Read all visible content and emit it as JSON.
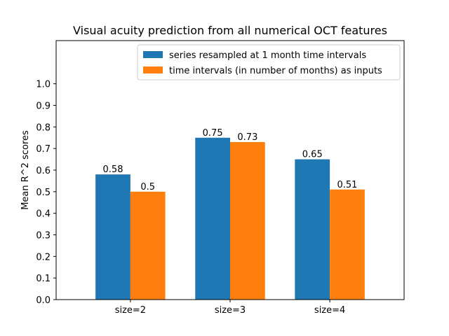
{
  "chart_data": {
    "type": "bar",
    "title": "Visual acuity prediction from all numerical OCT features",
    "xlabel": "",
    "ylabel": "Mean R^2 scores",
    "categories": [
      "size=2",
      "size=3",
      "size=4"
    ],
    "series": [
      {
        "name": "series resampled at 1 month time intervals",
        "values": [
          0.58,
          0.75,
          0.65
        ],
        "color": "#1f77b4"
      },
      {
        "name": "time intervals (in number of months) as inputs",
        "values": [
          0.5,
          0.73,
          0.51
        ],
        "color": "#ff7f0e"
      }
    ],
    "value_labels": [
      [
        "0.58",
        "0.75",
        "0.65"
      ],
      [
        "0.5",
        "0.73",
        "0.51"
      ]
    ],
    "ylim": [
      0.0,
      1.2
    ],
    "yticks": [
      0.0,
      0.1,
      0.2,
      0.3,
      0.4,
      0.5,
      0.6,
      0.7,
      0.8,
      0.9,
      1.0
    ],
    "ytick_labels": [
      "0.0",
      "0.1",
      "0.2",
      "0.3",
      "0.4",
      "0.5",
      "0.6",
      "0.7",
      "0.8",
      "0.9",
      "1.0"
    ],
    "grid": false,
    "legend_position": "top-right"
  }
}
